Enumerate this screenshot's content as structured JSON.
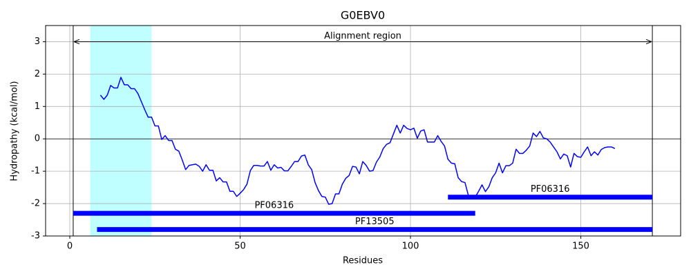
{
  "chart_data": {
    "type": "line",
    "title": "G0EBV0",
    "x_label": "Residues",
    "y_label": "Hydropathy (kcal/mol)",
    "xlim": [
      -7.1,
      179.3
    ],
    "ylim": [
      -3,
      3.5
    ],
    "xticks": [
      0,
      50,
      100,
      150
    ],
    "yticks": [
      -3,
      -2,
      -1,
      0,
      1,
      2,
      3
    ],
    "grid": true,
    "hline": 0,
    "highlight": {
      "start": 6,
      "end": 24,
      "color": "#bfffff"
    },
    "alignment_region": {
      "label": "Alignment region",
      "start": 1,
      "end": 171,
      "y": 3
    },
    "domains": [
      {
        "label": "PF06316",
        "start": 111,
        "end": 171,
        "y": -1.8,
        "color": "#0000ff"
      },
      {
        "label": "PF06316",
        "start": 1,
        "end": 119,
        "y": -2.3,
        "color": "#0000ff"
      },
      {
        "label": "PF13505",
        "start": 8,
        "end": 171,
        "y": -2.8,
        "color": "#0000ff"
      }
    ],
    "x": [
      9,
      10,
      11,
      12,
      13,
      14,
      15,
      16,
      17,
      18,
      19,
      20,
      21,
      22,
      23,
      24,
      25,
      26,
      27,
      28,
      29,
      30,
      31,
      32,
      33,
      34,
      35,
      36,
      37,
      38,
      39,
      40,
      41,
      42,
      43,
      44,
      45,
      46,
      47,
      48,
      49,
      50,
      51,
      52,
      53,
      54,
      55,
      56,
      57,
      58,
      59,
      60,
      61,
      62,
      63,
      64,
      65,
      66,
      67,
      68,
      69,
      70,
      71,
      72,
      73,
      74,
      75,
      76,
      77,
      78,
      79,
      80,
      81,
      82,
      83,
      84,
      85,
      86,
      87,
      88,
      89,
      90,
      91,
      92,
      93,
      94,
      95,
      96,
      97,
      98,
      99,
      100,
      101,
      102,
      103,
      104,
      105,
      106,
      107,
      108,
      109,
      110,
      111,
      112,
      113,
      114,
      115,
      116,
      117,
      118,
      119,
      120,
      121,
      122,
      123,
      124,
      125,
      126,
      127,
      128,
      129,
      130,
      131,
      132,
      133,
      134,
      135,
      136,
      137,
      138,
      139,
      140,
      141,
      142,
      143,
      144,
      145,
      146,
      147,
      148,
      149,
      150,
      151,
      152,
      153,
      154,
      155,
      156,
      157,
      158,
      159,
      160
    ],
    "series": [
      {
        "color": "#0000ff",
        "values": [
          1.35,
          1.22,
          1.35,
          1.65,
          1.57,
          1.57,
          1.9,
          1.67,
          1.67,
          1.55,
          1.55,
          1.4,
          1.15,
          0.9,
          0.67,
          0.67,
          0.4,
          0.4,
          -0.02,
          0.1,
          -0.05,
          -0.05,
          -0.32,
          -0.38,
          -0.65,
          -0.95,
          -0.82,
          -0.8,
          -0.78,
          -0.85,
          -1.0,
          -0.8,
          -0.97,
          -0.97,
          -1.3,
          -1.2,
          -1.33,
          -1.33,
          -1.62,
          -1.62,
          -1.78,
          -1.68,
          -1.57,
          -1.4,
          -0.98,
          -0.82,
          -0.82,
          -0.84,
          -0.84,
          -0.7,
          -0.97,
          -0.8,
          -0.9,
          -0.88,
          -0.99,
          -0.99,
          -0.85,
          -0.7,
          -0.7,
          -0.53,
          -0.5,
          -0.8,
          -0.95,
          -1.35,
          -1.6,
          -1.78,
          -1.8,
          -2.02,
          -2.0,
          -1.7,
          -1.7,
          -1.4,
          -1.22,
          -1.13,
          -0.85,
          -0.87,
          -1.08,
          -0.7,
          -0.82,
          -1.0,
          -0.98,
          -0.72,
          -0.56,
          -0.3,
          -0.17,
          -0.12,
          0.15,
          0.42,
          0.18,
          0.42,
          0.32,
          0.28,
          0.33,
          0.02,
          0.24,
          0.28,
          -0.1,
          -0.1,
          -0.1,
          0.1,
          -0.08,
          -0.22,
          -0.63,
          -0.75,
          -0.77,
          -1.2,
          -1.32,
          -1.35,
          -1.75,
          -1.82,
          -1.8,
          -1.62,
          -1.42,
          -1.63,
          -1.48,
          -1.2,
          -1.05,
          -0.75,
          -1.05,
          -0.83,
          -0.83,
          -0.75,
          -0.32,
          -0.45,
          -0.45,
          -0.35,
          -0.22,
          0.18,
          0.07,
          0.23,
          0.03,
          0.0,
          -0.1,
          -0.25,
          -0.4,
          -0.62,
          -0.47,
          -0.52,
          -0.87,
          -0.45,
          -0.55,
          -0.57,
          -0.4,
          -0.25,
          -0.52,
          -0.4,
          -0.5,
          -0.33,
          -0.27,
          -0.25,
          -0.25,
          -0.3
        ]
      }
    ]
  }
}
